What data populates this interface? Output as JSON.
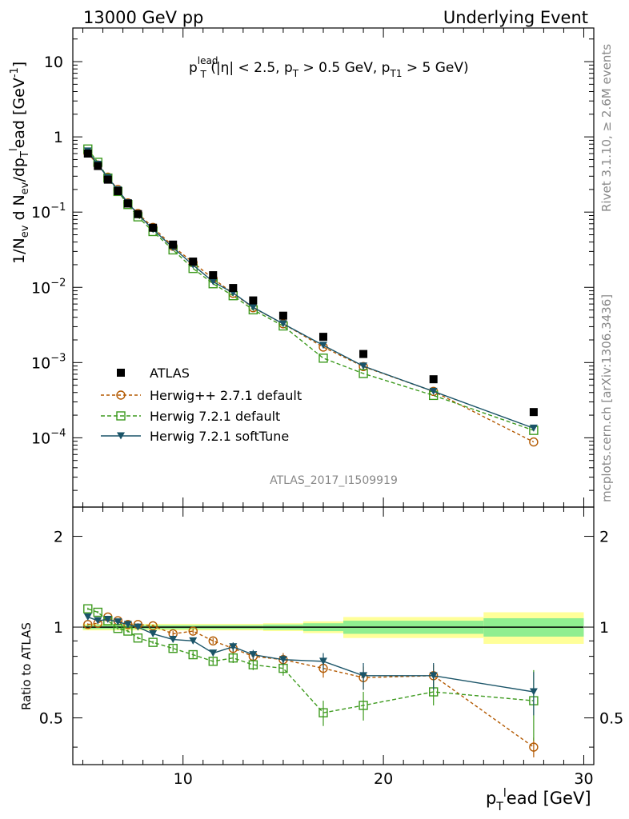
{
  "header": {
    "left": "13000 GeV pp",
    "right": "Underlying Event"
  },
  "plot_title": {
    "main": "p",
    "sup": "lead",
    "sub": "T",
    "rest_1": " (|η| < 2.5, p",
    "rest_1_sub": "T",
    "rest_2": " > 0.5 GeV, p",
    "rest_2_sub": "T1",
    "rest_3": " > 5 GeV)"
  },
  "side_labels": {
    "upper": "Rivet 3.1.10, ≥ 2.6M events",
    "lower": "mcplots.cern.ch [arXiv:1306.3436]"
  },
  "analysis_id": "ATLAS_2017_I1509919",
  "y_label_main": {
    "p1": "1/N",
    "p1_sub": "ev",
    "p2": " d N",
    "p2_sub": "ev",
    "p3": "/dp",
    "p3_sub": "T",
    "p4": "l",
    "p5": "ead [GeV",
    "p5_sup": "-1",
    "p6": "]"
  },
  "y_label_ratio": "Ratio to ATLAS",
  "x_label": {
    "p1": "p",
    "p1_sub": "T",
    "p2": "l",
    "p3": "ead [GeV]"
  },
  "main_y_ticks": [
    {
      "value": 10,
      "label": "10",
      "mantissa": "",
      "exponent": ""
    },
    {
      "value": 1,
      "label": "1",
      "mantissa": "",
      "exponent": ""
    },
    {
      "value": 0.1,
      "label": "",
      "mantissa": "10",
      "exponent": "−1"
    },
    {
      "value": 0.01,
      "label": "",
      "mantissa": "10",
      "exponent": "−2"
    },
    {
      "value": 0.001,
      "label": "",
      "mantissa": "10",
      "exponent": "−3"
    },
    {
      "value": 0.0001,
      "label": "",
      "mantissa": "10",
      "exponent": "−4"
    }
  ],
  "ratio_y_ticks": [
    {
      "value": 2,
      "label": "2"
    },
    {
      "value": 1,
      "label": "1"
    },
    {
      "value": 0.5,
      "label": "0.5"
    }
  ],
  "x_ticks": [
    {
      "value": 10,
      "label": "10"
    },
    {
      "value": 20,
      "label": "20"
    },
    {
      "value": 30,
      "label": "30"
    }
  ],
  "colors": {
    "atlas": "#000000",
    "herwigpp": "#b35900",
    "herwig721": "#3d9a1e",
    "softtune": "#1a5468",
    "band_inner": "#90ee90",
    "band_outer": "#ffff99"
  },
  "chart_data": {
    "type": "scatter",
    "xlim": [
      4.5,
      30.5
    ],
    "ylim_main": [
      1.2e-05,
      28
    ],
    "yscale_main": "log",
    "ylim_ratio": [
      0.35,
      2.5
    ],
    "yscale_ratio": "log",
    "legend_position": "lower-left",
    "x": [
      5.25,
      5.75,
      6.25,
      6.75,
      7.25,
      7.75,
      8.5,
      9.5,
      10.5,
      11.5,
      12.5,
      13.5,
      15,
      17,
      19,
      22.5,
      27.5
    ],
    "x_bin_edges": [
      5,
      5.5,
      6,
      6.5,
      7,
      7.5,
      8,
      9,
      10,
      11,
      12,
      13,
      14,
      16,
      18,
      21,
      25,
      30
    ],
    "band": {
      "x_edges": [
        5,
        14,
        16,
        18,
        25,
        30
      ],
      "inner": [
        0.015,
        0.02,
        0.03,
        0.05,
        0.07
      ],
      "outer": [
        0.025,
        0.03,
        0.045,
        0.08,
        0.12
      ]
    },
    "series": [
      {
        "name": "ATLAS",
        "style": "square",
        "values": [
          0.6,
          0.41,
          0.27,
          0.19,
          0.13,
          0.094,
          0.062,
          0.037,
          0.022,
          0.0145,
          0.0098,
          0.0067,
          0.0042,
          0.0022,
          0.0013,
          0.0006,
          0.00022
        ]
      },
      {
        "name": "Herwig++ 2.7.1 default",
        "style": "circle",
        "ratio": [
          1.02,
          1.03,
          1.08,
          1.05,
          1.02,
          1.02,
          1.01,
          0.95,
          0.97,
          0.9,
          0.85,
          0.8,
          0.78,
          0.73,
          0.68,
          0.69,
          0.4
        ],
        "ratio_err": [
          0.01,
          0.01,
          0.01,
          0.01,
          0.01,
          0.01,
          0.01,
          0.02,
          0.02,
          0.02,
          0.03,
          0.03,
          0.04,
          0.05,
          0.06,
          0.06,
          0.03
        ]
      },
      {
        "name": "Herwig 7.2.1 default",
        "style": "open-square",
        "ratio": [
          1.15,
          1.12,
          1.05,
          0.99,
          0.97,
          0.92,
          0.89,
          0.85,
          0.81,
          0.77,
          0.79,
          0.75,
          0.73,
          0.52,
          0.55,
          0.61,
          0.57
        ],
        "ratio_err": [
          0.01,
          0.01,
          0.01,
          0.01,
          0.01,
          0.01,
          0.01,
          0.02,
          0.02,
          0.02,
          0.03,
          0.03,
          0.04,
          0.05,
          0.06,
          0.06,
          0.15
        ]
      },
      {
        "name": "Herwig 7.2.1 softTune",
        "style": "triangle-down",
        "ratio": [
          1.08,
          1.05,
          1.06,
          1.04,
          1.02,
          1.0,
          0.95,
          0.91,
          0.9,
          0.82,
          0.86,
          0.81,
          0.78,
          0.77,
          0.69,
          0.69,
          0.61
        ],
        "ratio_err": [
          0.01,
          0.01,
          0.01,
          0.01,
          0.01,
          0.01,
          0.01,
          0.02,
          0.02,
          0.02,
          0.03,
          0.03,
          0.03,
          0.05,
          0.07,
          0.07,
          0.1
        ]
      }
    ]
  }
}
